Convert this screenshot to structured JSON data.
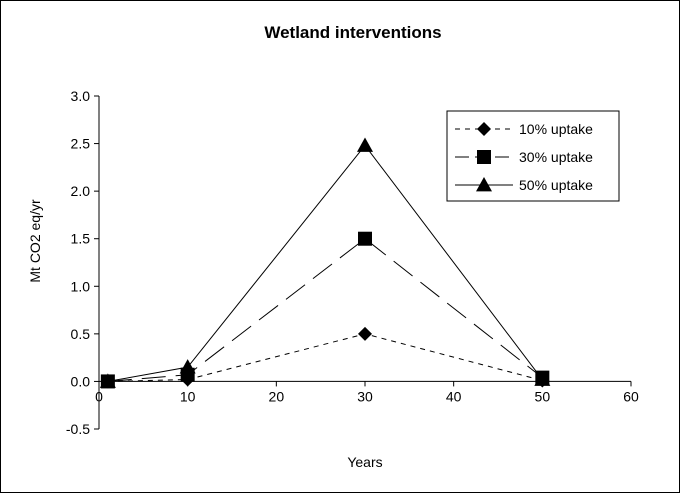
{
  "chart_data": {
    "type": "line",
    "title": "Wetland interventions",
    "xlabel": "Years",
    "ylabel": "Mt CO2 eq/yr",
    "xlim": [
      0,
      60
    ],
    "ylim": [
      -0.5,
      3.0
    ],
    "xticks": [
      "0",
      "10",
      "20",
      "30",
      "40",
      "50",
      "60"
    ],
    "yticks": [
      "3.0",
      "2.5",
      "2.0",
      "1.5",
      "1.0",
      "0.5",
      "0.0",
      "-0.5"
    ],
    "grid": false,
    "legend_position": "top-right",
    "series": [
      {
        "name": "10% uptake",
        "x": [
          1,
          10,
          30,
          50
        ],
        "y": [
          0.0,
          0.02,
          0.5,
          0.01
        ],
        "marker": "diamond",
        "dash": "short"
      },
      {
        "name": "30% uptake",
        "x": [
          1,
          10,
          30,
          50
        ],
        "y": [
          0.0,
          0.07,
          1.5,
          0.04
        ],
        "marker": "square",
        "dash": "long"
      },
      {
        "name": "50% uptake",
        "x": [
          1,
          10,
          30,
          50
        ],
        "y": [
          0.0,
          0.15,
          2.48,
          0.02
        ],
        "marker": "triangle",
        "dash": "solid"
      }
    ]
  }
}
